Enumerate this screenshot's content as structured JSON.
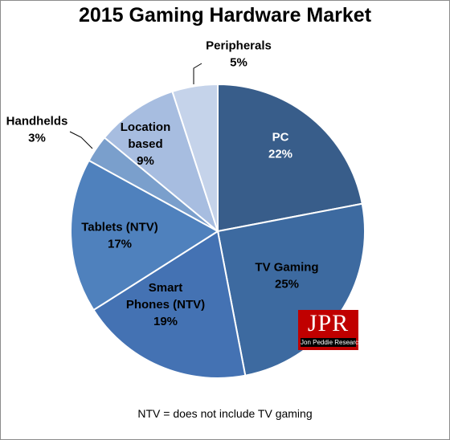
{
  "chart_data": {
    "type": "pie",
    "title": "2015 Gaming Hardware Market",
    "slices": [
      {
        "lines": [
          "PC",
          "22%"
        ],
        "value": 22,
        "color": "#385d8a",
        "text_color": "#ffffff"
      },
      {
        "lines": [
          "TV Gaming",
          "25%"
        ],
        "value": 25,
        "color": "#3d6aa0",
        "text_color": "#000000"
      },
      {
        "lines": [
          "Smart",
          "Phones (NTV)",
          "19%"
        ],
        "value": 19,
        "color": "#4472b3",
        "text_color": "#000000"
      },
      {
        "lines": [
          "Tablets (NTV)",
          "17%"
        ],
        "value": 17,
        "color": "#4f81bd",
        "text_color": "#000000"
      },
      {
        "lines": [
          "Handhelds",
          "3%"
        ],
        "value": 3,
        "color": "#7a9fcc",
        "text_color": "#000000"
      },
      {
        "lines": [
          "Location",
          "based",
          "9%"
        ],
        "value": 9,
        "color": "#a7bde0",
        "text_color": "#000000"
      },
      {
        "lines": [
          "Peripherals",
          "5%"
        ],
        "value": 5,
        "color": "#c5d3ea",
        "text_color": "#000000"
      }
    ],
    "footnote": "NTV = does not include TV gaming"
  },
  "logo": {
    "main": "JPR",
    "sub": "Jon Peddie Research"
  }
}
